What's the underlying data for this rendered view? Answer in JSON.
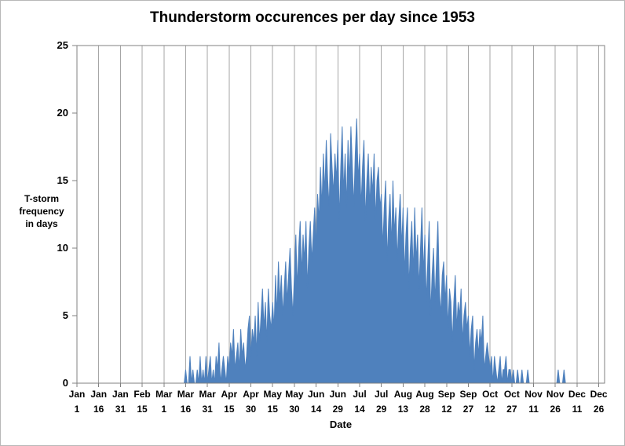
{
  "chart_data": {
    "type": "area",
    "title": "Thunderstorm occurences per day since 1953",
    "xlabel": "Date",
    "ylabel_lines": [
      "T-storm",
      "frequency",
      "in days"
    ],
    "ylim": [
      0,
      25
    ],
    "y_ticks": [
      0,
      5,
      10,
      15,
      20,
      25
    ],
    "x_tick_interval": 15,
    "x_tick_labels": [
      [
        "Jan",
        "1"
      ],
      [
        "Jan",
        "16"
      ],
      [
        "Jan",
        "31"
      ],
      [
        "Feb",
        "15"
      ],
      [
        "Mar",
        "1"
      ],
      [
        "Mar",
        "16"
      ],
      [
        "Mar",
        "31"
      ],
      [
        "Apr",
        "15"
      ],
      [
        "Apr",
        "30"
      ],
      [
        "May",
        "15"
      ],
      [
        "May",
        "30"
      ],
      [
        "Jun",
        "14"
      ],
      [
        "Jun",
        "29"
      ],
      [
        "Jul",
        "14"
      ],
      [
        "Jul",
        "29"
      ],
      [
        "Aug",
        "13"
      ],
      [
        "Aug",
        "28"
      ],
      [
        "Sep",
        "12"
      ],
      [
        "Sep",
        "27"
      ],
      [
        "Oct",
        "12"
      ],
      [
        "Oct",
        "27"
      ],
      [
        "Nov",
        "11"
      ],
      [
        "Nov",
        "26"
      ],
      [
        "Dec",
        "11"
      ],
      [
        "Dec",
        "26"
      ]
    ],
    "grid": "vertical",
    "legend": "none",
    "area_color": "#4F81BD",
    "grid_color": "#A6A6A6",
    "border_color": "#808080",
    "text_color": "#000000",
    "values": [
      0,
      0,
      0,
      0,
      0,
      0,
      0,
      0,
      0,
      0,
      0,
      0,
      0,
      0,
      0,
      0,
      0,
      0,
      0,
      0,
      0,
      0,
      0,
      0,
      0,
      0,
      0,
      0,
      0,
      0,
      0,
      0,
      0,
      0,
      0,
      0,
      0,
      0,
      0,
      0,
      0,
      0,
      0,
      0,
      0,
      0,
      0,
      0,
      0,
      0,
      0,
      0,
      0,
      0,
      0,
      0,
      0,
      0,
      0,
      0,
      0,
      0,
      0,
      0,
      0,
      0,
      0,
      0,
      0,
      0,
      0,
      0,
      0,
      0,
      0,
      1,
      0,
      0,
      2,
      0,
      1,
      0,
      0,
      1,
      0,
      2,
      0,
      1,
      0,
      2,
      0,
      1,
      2,
      0,
      1,
      0,
      2,
      1,
      3,
      0,
      1,
      2,
      1,
      0,
      2,
      1,
      3,
      2,
      4,
      1,
      2,
      3,
      1,
      4,
      2,
      3,
      1,
      2,
      4,
      5,
      2,
      4,
      3,
      5,
      2,
      6,
      3,
      5,
      7,
      4,
      6,
      3,
      7,
      5,
      4,
      6,
      4,
      8,
      5,
      9,
      6,
      8,
      5,
      7,
      9,
      6,
      8,
      10,
      7,
      5,
      8,
      11,
      7,
      10,
      12,
      8,
      11,
      9,
      12,
      7,
      10,
      12,
      9,
      11,
      13,
      10,
      14,
      12,
      16,
      13,
      17,
      14,
      18,
      15,
      13,
      18.5,
      16,
      14,
      17,
      15,
      18,
      12,
      16,
      19,
      14,
      17,
      13,
      18,
      15,
      19,
      16,
      13,
      17,
      19.6,
      15,
      17,
      13,
      16,
      18,
      12,
      15,
      17,
      13,
      16,
      14,
      17,
      12,
      15,
      16,
      13,
      14,
      10,
      13,
      15,
      9,
      12,
      14,
      10,
      15,
      11,
      13,
      9,
      12,
      14,
      10,
      13,
      8,
      11,
      13,
      7,
      10,
      12,
      8,
      13,
      9,
      11,
      7,
      10,
      13,
      8,
      11,
      6,
      9,
      12,
      5,
      8,
      10,
      6,
      9,
      12,
      7,
      5,
      8,
      9,
      6,
      8,
      4,
      7,
      6,
      3,
      6,
      8,
      4,
      6,
      5,
      7,
      3,
      5,
      6,
      4,
      5,
      2,
      4,
      5,
      1,
      3,
      4,
      2,
      4,
      3,
      5,
      1,
      2,
      3,
      2,
      1,
      2,
      0,
      2,
      1,
      0,
      1,
      2,
      0,
      1,
      1,
      2,
      0,
      1,
      1,
      0,
      1,
      0,
      0,
      1,
      0,
      0,
      1,
      0,
      0,
      0,
      1,
      0,
      0,
      0,
      0,
      0,
      0,
      0,
      0,
      0,
      0,
      0,
      0,
      0,
      0,
      0,
      0,
      0,
      0,
      0,
      0,
      1,
      0,
      0,
      0,
      1,
      0,
      0,
      0,
      0,
      0,
      0,
      0,
      0,
      0,
      0,
      0,
      0,
      0,
      0,
      0,
      0,
      0,
      0,
      0,
      0,
      0,
      0,
      0,
      0,
      0,
      0,
      0,
      0
    ]
  }
}
